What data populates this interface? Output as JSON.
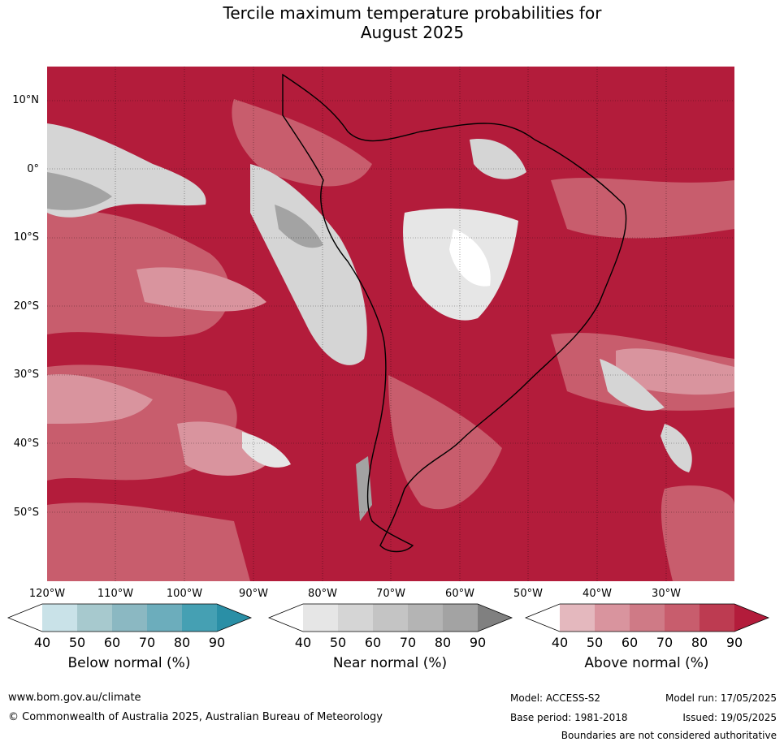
{
  "title_line1": "Tercile maximum temperature probabilities for",
  "title_line2": "August 2025",
  "lat_labels": [
    "10°N",
    "0°",
    "10°S",
    "20°S",
    "30°S",
    "40°S",
    "50°S"
  ],
  "lon_labels": [
    "120°W",
    "110°W",
    "100°W",
    "90°W",
    "80°W",
    "70°W",
    "60°W",
    "50°W",
    "40°W",
    "30°W"
  ],
  "colorbars": [
    {
      "label": "Below normal (%)",
      "ticks": [
        "40",
        "50",
        "60",
        "70",
        "80",
        "90"
      ],
      "colors": [
        "#ffffff",
        "#c9e2e8",
        "#a7c9ce",
        "#8bb8c2",
        "#6cadbc",
        "#45a0b3",
        "#2a8fa6"
      ]
    },
    {
      "label": "Near normal (%)",
      "ticks": [
        "40",
        "50",
        "60",
        "70",
        "80",
        "90"
      ],
      "colors": [
        "#ffffff",
        "#e6e6e6",
        "#d5d5d5",
        "#c4c4c4",
        "#b4b4b4",
        "#a3a3a3",
        "#808080"
      ]
    },
    {
      "label": "Above normal (%)",
      "ticks": [
        "40",
        "50",
        "60",
        "70",
        "80",
        "90"
      ],
      "colors": [
        "#ffffff",
        "#e4b8be",
        "#d9949e",
        "#cf7a86",
        "#c85d6d",
        "#bd3b51",
        "#b31c3b"
      ]
    }
  ],
  "footer": {
    "url": "www.bom.gov.au/climate",
    "copyright": "© Commonwealth of Australia 2025, Australian Bureau of Meteorology",
    "model": "Model: ACCESS-S2",
    "base_period": "Base period: 1981-2018",
    "model_run": "Model run: 17/05/2025",
    "issued": "Issued: 19/05/2025",
    "disclaimer": "Boundaries are not considered authoritative"
  },
  "colors": {
    "above_90": "#b31c3b",
    "above_70": "#cf7a86",
    "near_60": "#d5d5d5",
    "near_80": "#a3a3a3"
  }
}
